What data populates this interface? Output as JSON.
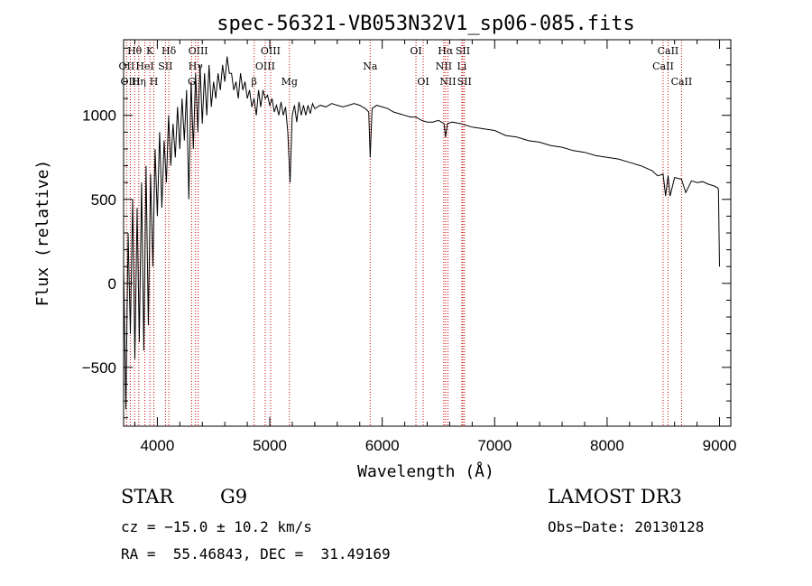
{
  "chart_data": {
    "type": "line",
    "title": "spec-56321-VB053N32V1_sp06-085.fits",
    "xlabel": "Wavelength (Å)",
    "ylabel": "Flux (relative)",
    "xlim": [
      3700,
      9100
    ],
    "ylim": [
      -850,
      1450
    ],
    "xticks": [
      4000,
      5000,
      6000,
      7000,
      8000,
      9000
    ],
    "yticks": [
      -500,
      0,
      500,
      1000
    ],
    "grid": false,
    "spectral_lines": [
      {
        "label": "Hθ",
        "wavelength": 3798,
        "row": 0
      },
      {
        "label": "K",
        "wavelength": 3934,
        "row": 0
      },
      {
        "label": "Hδ",
        "wavelength": 4102,
        "row": 0
      },
      {
        "label": "OII",
        "wavelength": 3727,
        "row": 1
      },
      {
        "label": "HeI",
        "wavelength": 3889,
        "row": 1
      },
      {
        "label": "SII",
        "wavelength": 4072,
        "row": 1
      },
      {
        "label": "OIII",
        "wavelength": 3760,
        "row": 2
      },
      {
        "label": "Hη",
        "wavelength": 3835,
        "row": 2
      },
      {
        "label": "H",
        "wavelength": 3969,
        "row": 2
      },
      {
        "label": "OIII",
        "wavelength": 4363,
        "row": 0
      },
      {
        "label": "Hγ",
        "wavelength": 4340,
        "row": 1
      },
      {
        "label": "G",
        "wavelength": 4305,
        "row": 2
      },
      {
        "label": "OIII",
        "wavelength": 5007,
        "row": 0
      },
      {
        "label": "OIII",
        "wavelength": 4959,
        "row": 1
      },
      {
        "label": "β",
        "wavelength": 4861,
        "row": 2
      },
      {
        "label": "Mg",
        "wavelength": 5175,
        "row": 2
      },
      {
        "label": "Na",
        "wavelength": 5893,
        "row": 1
      },
      {
        "label": "OI",
        "wavelength": 6300,
        "row": 0
      },
      {
        "label": "OI",
        "wavelength": 6364,
        "row": 2
      },
      {
        "label": "Hα",
        "wavelength": 6563,
        "row": 0
      },
      {
        "label": "SII",
        "wavelength": 6717,
        "row": 0
      },
      {
        "label": "NII",
        "wavelength": 6548,
        "row": 1
      },
      {
        "label": "Li",
        "wavelength": 6708,
        "row": 1
      },
      {
        "label": "NII",
        "wavelength": 6584,
        "row": 2
      },
      {
        "label": "SII",
        "wavelength": 6731,
        "row": 2
      },
      {
        "label": "CaII",
        "wavelength": 8542,
        "row": 0
      },
      {
        "label": "CaII",
        "wavelength": 8498,
        "row": 1
      },
      {
        "label": "CaII",
        "wavelength": 8662,
        "row": 2
      }
    ],
    "series": [
      {
        "name": "flux",
        "x": [
          3700,
          3720,
          3740,
          3760,
          3780,
          3800,
          3820,
          3840,
          3860,
          3880,
          3900,
          3920,
          3940,
          3960,
          3980,
          4000,
          4020,
          4040,
          4060,
          4080,
          4100,
          4120,
          4140,
          4160,
          4180,
          4200,
          4220,
          4240,
          4260,
          4280,
          4300,
          4320,
          4340,
          4360,
          4380,
          4400,
          4420,
          4440,
          4460,
          4480,
          4500,
          4520,
          4540,
          4560,
          4580,
          4600,
          4620,
          4640,
          4660,
          4680,
          4700,
          4720,
          4740,
          4760,
          4780,
          4800,
          4820,
          4840,
          4860,
          4880,
          4900,
          4920,
          4940,
          4960,
          4980,
          5000,
          5020,
          5040,
          5060,
          5080,
          5100,
          5120,
          5140,
          5160,
          5180,
          5200,
          5220,
          5240,
          5260,
          5280,
          5300,
          5320,
          5340,
          5360,
          5380,
          5400,
          5450,
          5500,
          5550,
          5600,
          5650,
          5700,
          5750,
          5800,
          5850,
          5880,
          5893,
          5910,
          5950,
          6000,
          6050,
          6100,
          6150,
          6200,
          6250,
          6300,
          6350,
          6400,
          6450,
          6500,
          6550,
          6563,
          6580,
          6620,
          6700,
          6800,
          6900,
          7000,
          7100,
          7200,
          7300,
          7400,
          7500,
          7600,
          7700,
          7800,
          7900,
          8000,
          8100,
          8200,
          8300,
          8400,
          8450,
          8498,
          8520,
          8542,
          8560,
          8600,
          8662,
          8700,
          8750,
          8800,
          8850,
          8900,
          8950,
          8980,
          8990,
          9000
        ],
        "values": [
          100,
          -750,
          300,
          -300,
          500,
          -450,
          450,
          -350,
          600,
          -400,
          700,
          -250,
          650,
          100,
          800,
          400,
          900,
          450,
          850,
          600,
          1000,
          700,
          950,
          750,
          1050,
          800,
          1100,
          850,
          1150,
          500,
          1200,
          800,
          1250,
          900,
          1300,
          950,
          1250,
          1000,
          1300,
          1050,
          1200,
          1100,
          1250,
          1150,
          1300,
          1200,
          1350,
          1250,
          1250,
          1150,
          1200,
          1100,
          1250,
          1150,
          1200,
          1100,
          1150,
          1050,
          1100,
          1000,
          1150,
          1050,
          1150,
          1100,
          1120,
          1060,
          1100,
          1020,
          1060,
          1000,
          1080,
          1000,
          1050,
          900,
          600,
          1000,
          1060,
          960,
          1080,
          1000,
          1060,
          1000,
          1060,
          1010,
          1070,
          1040,
          1060,
          1050,
          1070,
          1060,
          1050,
          1060,
          1070,
          1060,
          1040,
          1020,
          750,
          1040,
          1060,
          1050,
          1040,
          1020,
          1010,
          1000,
          990,
          990,
          970,
          960,
          960,
          970,
          950,
          870,
          950,
          960,
          950,
          930,
          920,
          910,
          880,
          870,
          850,
          840,
          820,
          810,
          790,
          780,
          760,
          750,
          740,
          720,
          700,
          670,
          640,
          650,
          520,
          640,
          520,
          630,
          620,
          540,
          610,
          600,
          605,
          590,
          580,
          570,
          560,
          100
        ]
      }
    ]
  },
  "info": {
    "object_class": "STAR",
    "subclass": "G9",
    "survey": "LAMOST DR3",
    "redshift": "cz = −15.0 ± 10.2 km/s",
    "obs_date": "Obs−Date: 20130128",
    "coords": "RA =  55.46843, DEC =  31.49169"
  }
}
